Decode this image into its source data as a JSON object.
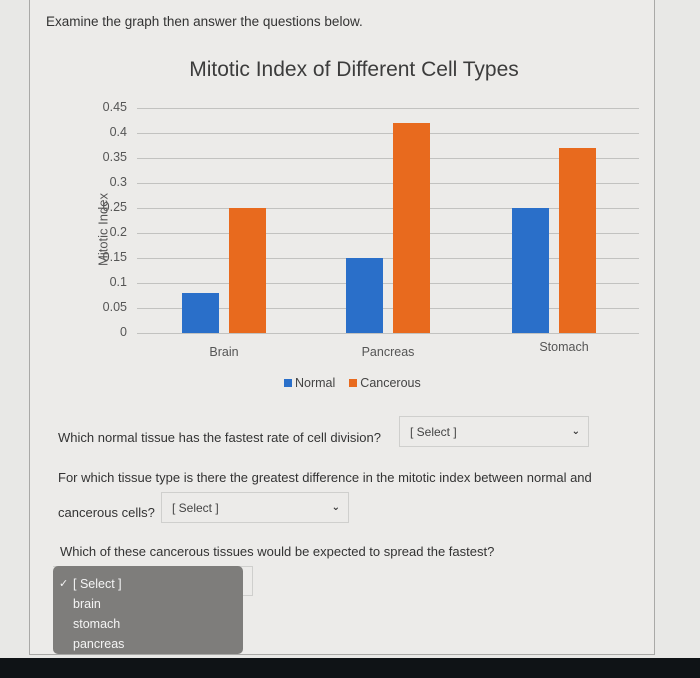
{
  "instructions": "Examine the graph then answer the questions below.",
  "chart_data": {
    "type": "bar",
    "title": "Mitotic Index of Different Cell Types",
    "xlabel": "",
    "ylabel": "Mitotic Index",
    "categories": [
      "Brain",
      "Pancreas",
      "Stomach"
    ],
    "series": [
      {
        "name": "Normal",
        "color": "#2a6fc9",
        "values": [
          0.08,
          0.15,
          0.25
        ]
      },
      {
        "name": "Cancerous",
        "color": "#e86a1e",
        "values": [
          0.25,
          0.42,
          0.37
        ]
      }
    ],
    "y_ticks": [
      "0",
      "0.05",
      "0.1",
      "0.15",
      "0.2",
      "0.25",
      "0.3",
      "0.35",
      "0.4",
      "0.45"
    ],
    "ylim": [
      0,
      0.45
    ],
    "grid": true,
    "legend_position": "bottom"
  },
  "legend": {
    "normal": "Normal",
    "cancerous": "Cancerous"
  },
  "questions": [
    {
      "text": "Which normal tissue has the fastest rate of cell division?",
      "selected": "[ Select ]"
    },
    {
      "text_line1": "For which tissue type is there the greatest difference in the mitotic index between normal and",
      "text_line2": "cancerous cells?",
      "selected": "[ Select ]"
    },
    {
      "text": "Which of these cancerous tissues would be expected to spread the fastest?",
      "selected": "[ Select ]",
      "options": [
        "[ Select ]",
        "brain",
        "stomach",
        "pancreas"
      ],
      "checked_index": 0
    }
  ],
  "icons": {
    "chevron": "⌄",
    "check": "✓"
  }
}
